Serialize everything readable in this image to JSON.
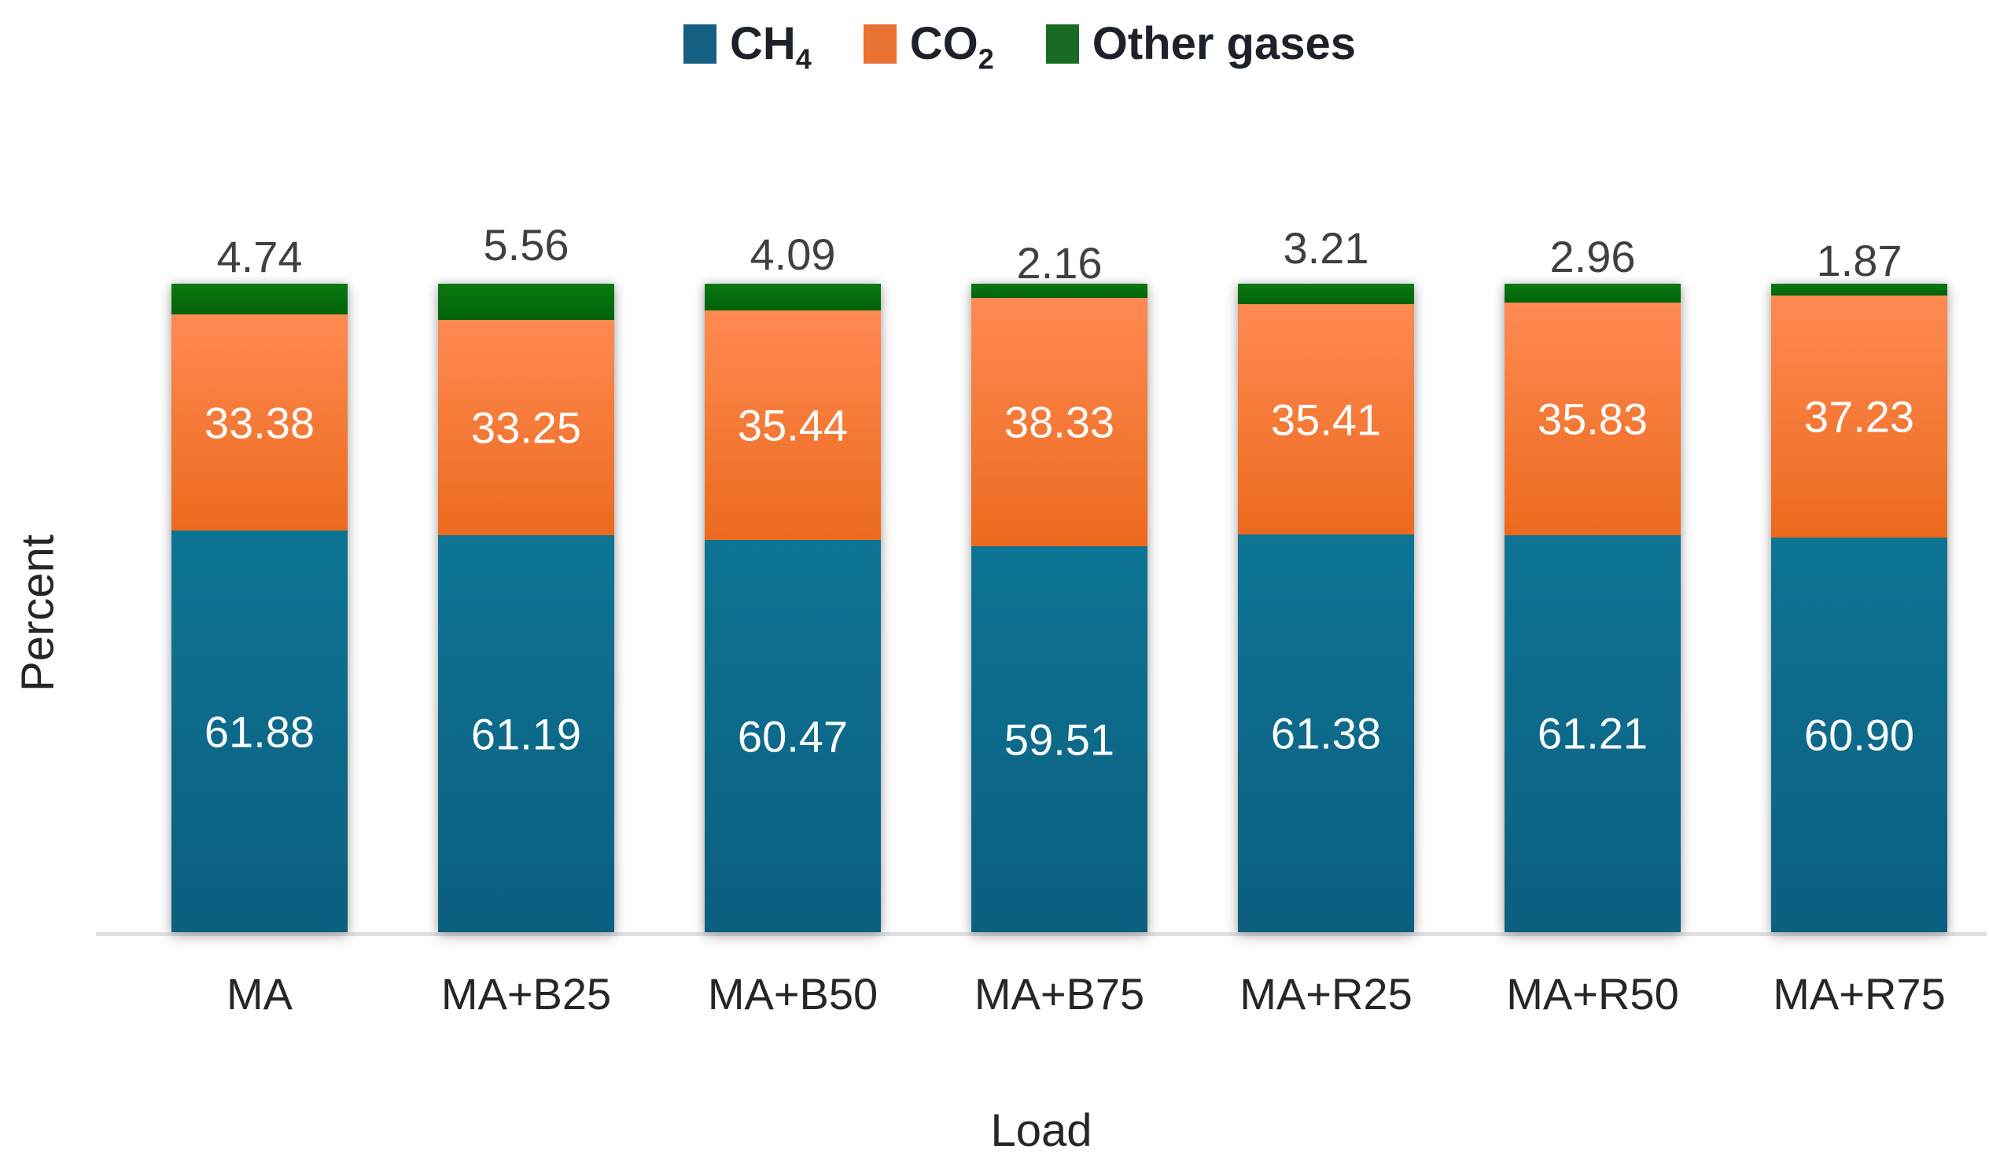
{
  "chart_data": {
    "type": "bar",
    "stacked": true,
    "percent_stacked": true,
    "title": "",
    "xlabel": "Load",
    "ylabel": "Percent",
    "ylim": [
      0,
      100
    ],
    "gridlines": false,
    "legend_position": "top",
    "background": "#FFFFFF",
    "axis_line_color": "#E1E1E5",
    "value_format": "0.00",
    "categories": [
      "MA",
      "MA+B25",
      "MA+B50",
      "MA+B75",
      "MA+R25",
      "MA+R50",
      "MA+R75"
    ],
    "series": [
      {
        "name": "CH4",
        "legend_label": "CH",
        "legend_sub": "4",
        "color": "#156082",
        "color_top": "#0E7493",
        "color_bottom": "#0C5F80",
        "label_position": "inside-center",
        "label_color": "#FFFFFF",
        "values": [
          61.88,
          61.19,
          60.47,
          59.51,
          61.38,
          61.21,
          60.9
        ]
      },
      {
        "name": "CO2",
        "legend_label": "CO",
        "legend_sub": "2",
        "color": "#E97132",
        "color_top": "#FF8A52",
        "color_bottom": "#EC6A1E",
        "label_position": "inside-center",
        "label_color": "#FFFFFF",
        "values": [
          33.38,
          33.25,
          35.44,
          38.33,
          35.41,
          35.83,
          37.23
        ]
      },
      {
        "name": "Other gases",
        "legend_label": "Other gases",
        "legend_sub": "",
        "color": "#196B24",
        "color_top": "#0B7A11",
        "color_bottom": "#02620A",
        "label_position": "outside-top",
        "label_color": "#404040",
        "values": [
          4.74,
          5.56,
          4.09,
          2.16,
          3.21,
          2.96,
          1.87
        ]
      }
    ]
  }
}
